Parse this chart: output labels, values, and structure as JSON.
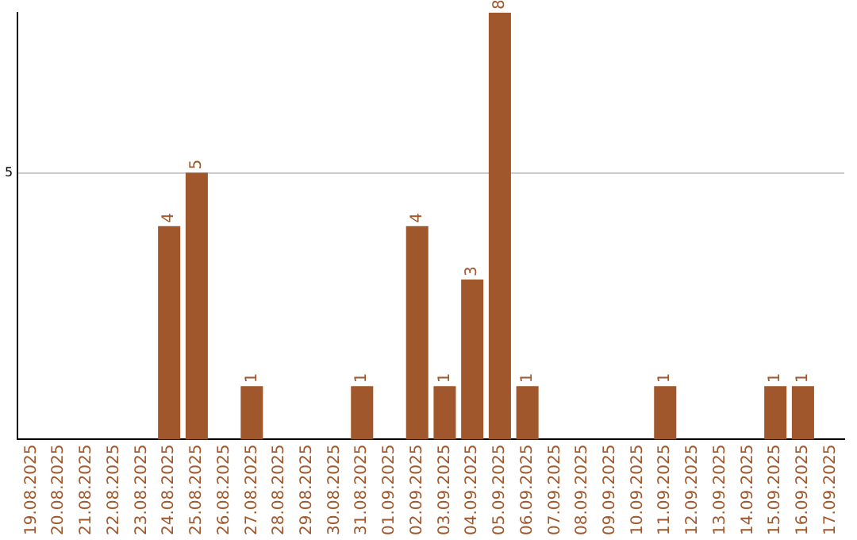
{
  "chart_data": {
    "type": "bar",
    "categories": [
      "19.08.2025",
      "20.08.2025",
      "21.08.2025",
      "22.08.2025",
      "23.08.2025",
      "24.08.2025",
      "25.08.2025",
      "26.08.2025",
      "27.08.2025",
      "28.08.2025",
      "29.08.2025",
      "30.08.2025",
      "31.08.2025",
      "01.09.2025",
      "02.09.2025",
      "03.09.2025",
      "04.09.2025",
      "05.09.2025",
      "06.09.2025",
      "07.09.2025",
      "08.09.2025",
      "09.09.2025",
      "10.09.2025",
      "11.09.2025",
      "12.09.2025",
      "13.09.2025",
      "14.09.2025",
      "15.09.2025",
      "16.09.2025",
      "17.09.2025"
    ],
    "values": [
      0,
      0,
      0,
      0,
      0,
      4,
      5,
      0,
      1,
      0,
      0,
      0,
      1,
      0,
      4,
      1,
      3,
      8,
      1,
      0,
      0,
      0,
      0,
      1,
      0,
      0,
      0,
      1,
      1,
      0
    ],
    "value_labels": [
      null,
      null,
      null,
      null,
      null,
      "4",
      "5",
      null,
      "1",
      null,
      null,
      null,
      "1",
      null,
      "4",
      "1",
      "3",
      "8",
      "1",
      null,
      null,
      null,
      null,
      "1",
      null,
      null,
      null,
      "1",
      "1",
      null
    ],
    "color": "#a0572b",
    "ylim": [
      0,
      8
    ],
    "yticks": [
      5
    ],
    "grid": "y"
  }
}
